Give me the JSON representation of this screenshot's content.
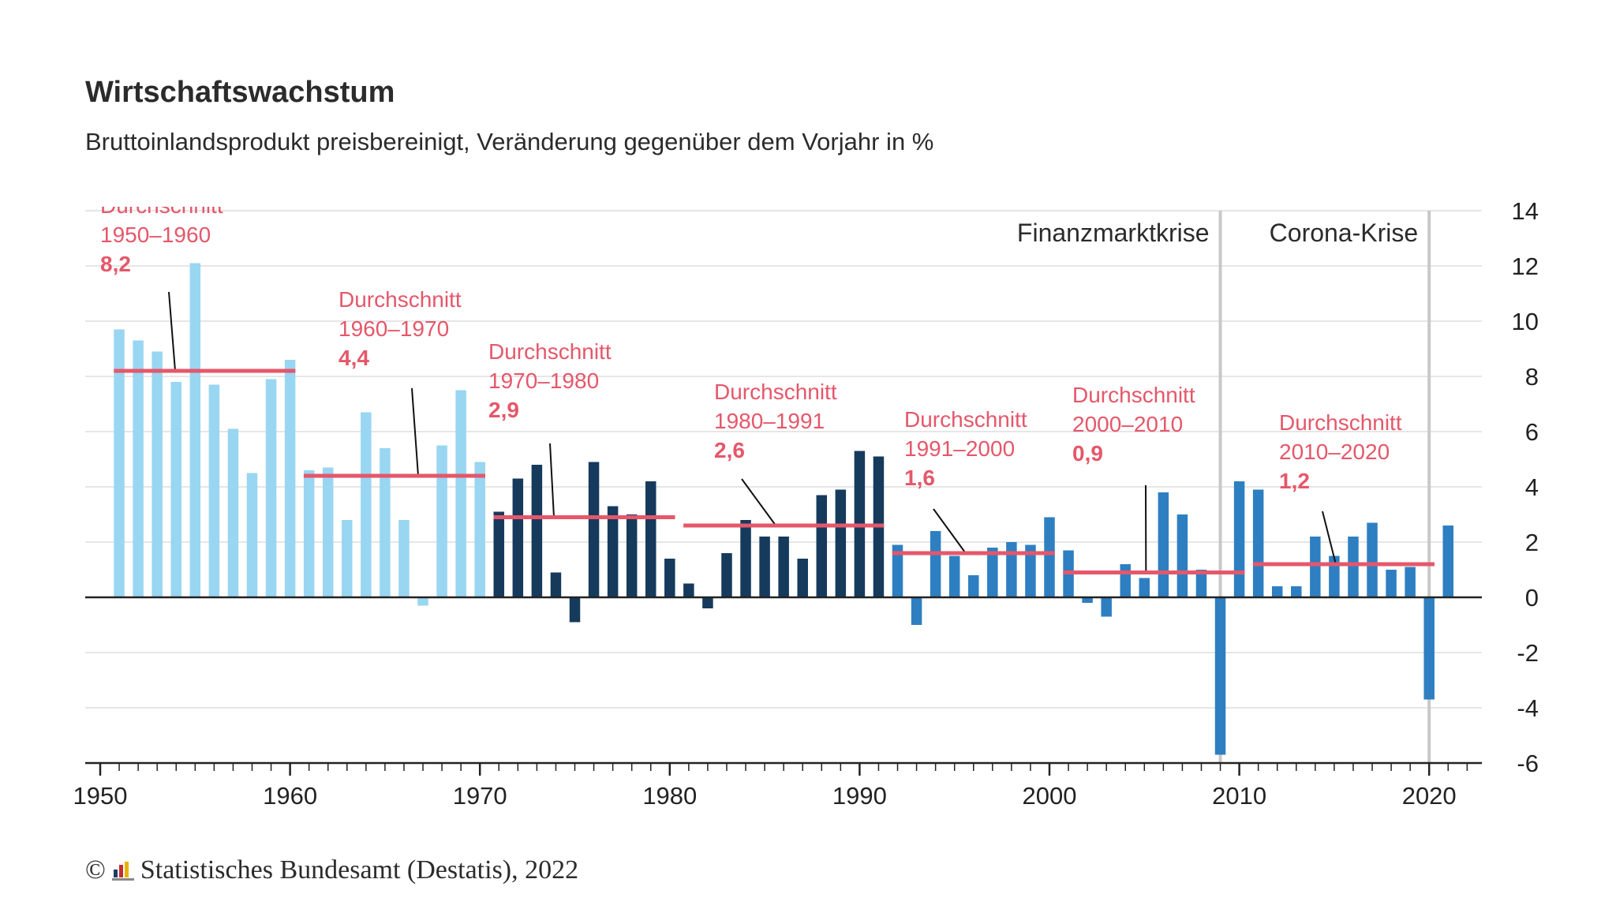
{
  "title": "Wirtschaftswachstum",
  "subtitle": "Bruttoinlandsprodukt preisbereinigt, Veränderung gegenüber dem Vorjahr in %",
  "source": "Statistisches Bundesamt (Destatis), 2022",
  "copyright_symbol": "©",
  "colors": {
    "p1950": "#99d6f2",
    "p1970": "#163a5c",
    "p1991": "#2e7fc1",
    "average": "#e5576a",
    "marker": "#c8c8c8",
    "grid": "#dddddd",
    "axis": "#222222"
  },
  "chart_data": {
    "type": "bar",
    "ylim": [
      -6,
      14
    ],
    "yticks": [
      14,
      12,
      10,
      8,
      6,
      4,
      2,
      0,
      -2,
      -4,
      -6
    ],
    "xtick_labels": [
      "1950",
      "1960",
      "1970",
      "1980",
      "1990",
      "2000",
      "2010",
      "2020"
    ],
    "xlim": [
      1949,
      2022
    ],
    "series": [
      {
        "period": "1950-1970",
        "color_key": "p1950",
        "x": [
          1951,
          1952,
          1953,
          1954,
          1955,
          1956,
          1957,
          1958,
          1959,
          1960,
          1961,
          1962,
          1963,
          1964,
          1965,
          1966,
          1967,
          1968,
          1969,
          1970
        ],
        "values": [
          9.7,
          9.3,
          8.9,
          7.8,
          12.1,
          7.7,
          6.1,
          4.5,
          7.9,
          8.6,
          4.6,
          4.7,
          2.8,
          6.7,
          5.4,
          2.8,
          -0.3,
          5.5,
          7.5,
          4.9
        ]
      },
      {
        "period": "1971-1991",
        "color_key": "p1970",
        "x": [
          1971,
          1972,
          1973,
          1974,
          1975,
          1976,
          1977,
          1978,
          1979,
          1980,
          1981,
          1982,
          1983,
          1984,
          1985,
          1986,
          1987,
          1988,
          1989,
          1990,
          1991
        ],
        "values": [
          3.1,
          4.3,
          4.8,
          0.9,
          -0.9,
          4.9,
          3.3,
          3.0,
          4.2,
          1.4,
          0.5,
          -0.4,
          1.6,
          2.8,
          2.2,
          2.2,
          1.4,
          3.7,
          3.9,
          5.3,
          5.1
        ]
      },
      {
        "period": "1992-2021",
        "color_key": "p1991",
        "x": [
          1992,
          1993,
          1994,
          1995,
          1996,
          1997,
          1998,
          1999,
          2000,
          2001,
          2002,
          2003,
          2004,
          2005,
          2006,
          2007,
          2008,
          2009,
          2010,
          2011,
          2012,
          2013,
          2014,
          2015,
          2016,
          2017,
          2018,
          2019,
          2020,
          2021
        ],
        "values": [
          1.9,
          -1.0,
          2.4,
          1.5,
          0.8,
          1.8,
          2.0,
          1.9,
          2.9,
          1.7,
          -0.2,
          -0.7,
          1.2,
          0.7,
          3.8,
          3.0,
          1.0,
          -5.7,
          4.2,
          3.9,
          0.4,
          0.4,
          2.2,
          1.5,
          2.2,
          2.7,
          1.0,
          1.1,
          -3.7,
          2.6
        ]
      }
    ],
    "averages": [
      {
        "label": "Durchschnitt",
        "period": "1950–1960",
        "value_label": "8,2",
        "value": 8.2,
        "x_start": 1951,
        "x_end": 1960
      },
      {
        "label": "Durchschnitt",
        "period": "1960–1970",
        "value_label": "4,4",
        "value": 4.4,
        "x_start": 1961,
        "x_end": 1970
      },
      {
        "label": "Durchschnitt",
        "period": "1970–1980",
        "value_label": "2,9",
        "value": 2.9,
        "x_start": 1971,
        "x_end": 1980
      },
      {
        "label": "Durchschnitt",
        "period": "1980–1991",
        "value_label": "2,6",
        "value": 2.6,
        "x_start": 1981,
        "x_end": 1991
      },
      {
        "label": "Durchschnitt",
        "period": "1991–2000",
        "value_label": "1,6",
        "value": 1.6,
        "x_start": 1992,
        "x_end": 2000
      },
      {
        "label": "Durchschnitt",
        "period": "2000–2010",
        "value_label": "0,9",
        "value": 0.9,
        "x_start": 2001,
        "x_end": 2010
      },
      {
        "label": "Durchschnitt",
        "period": "2010–2020",
        "value_label": "1,2",
        "value": 1.2,
        "x_start": 2011,
        "x_end": 2020
      }
    ],
    "annotations": [
      {
        "label": "Finanzmarktkrise",
        "x": 2009
      },
      {
        "label": "Corona-Krise",
        "x": 2020
      }
    ]
  }
}
